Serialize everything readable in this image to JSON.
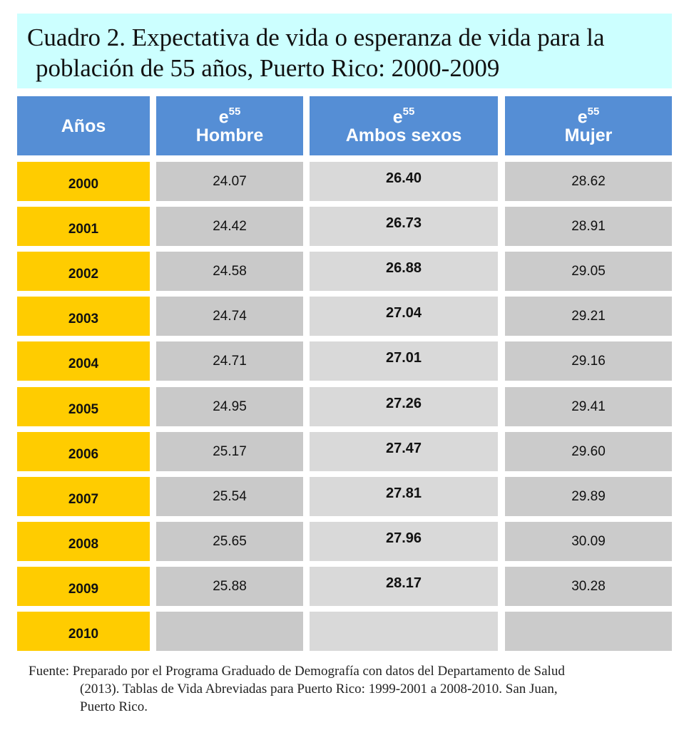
{
  "title": {
    "line1": "Cuadro 2. Expectativa de vida o esperanza de vida para la",
    "line2": "población de 55 años, Puerto Rico: 2000-2009"
  },
  "headers": {
    "years": "Años",
    "symbol": "e",
    "superscript": "55",
    "male": "Hombre",
    "both": "Ambos sexos",
    "female": "Mujer"
  },
  "chart_data": {
    "type": "table",
    "columns": [
      "Años",
      "e55 Hombre",
      "e55 Ambos sexos",
      "e55 Mujer"
    ],
    "rows": [
      {
        "year": "2000",
        "male": "24.07",
        "both": "26.40",
        "female": "28.62"
      },
      {
        "year": "2001",
        "male": "24.42",
        "both": "26.73",
        "female": "28.91"
      },
      {
        "year": "2002",
        "male": "24.58",
        "both": "26.88",
        "female": "29.05"
      },
      {
        "year": "2003",
        "male": "24.74",
        "both": "27.04",
        "female": "29.21"
      },
      {
        "year": "2004",
        "male": "24.71",
        "both": "27.01",
        "female": "29.16"
      },
      {
        "year": "2005",
        "male": "24.95",
        "both": "27.26",
        "female": "29.41"
      },
      {
        "year": "2006",
        "male": "25.17",
        "both": "27.47",
        "female": "29.60"
      },
      {
        "year": "2007",
        "male": "25.54",
        "both": "27.81",
        "female": "29.89"
      },
      {
        "year": "2008",
        "male": "25.65",
        "both": "27.96",
        "female": "30.09"
      },
      {
        "year": "2009",
        "male": "25.88",
        "both": "28.17",
        "female": "30.28"
      },
      {
        "year": "2010",
        "male": "",
        "both": "",
        "female": ""
      }
    ]
  },
  "source": {
    "line1": "Fuente: Preparado por el Programa Graduado de Demografía con datos del Departamento de Salud",
    "line2": "(2013). Tablas de Vida Abreviadas para Puerto Rico: 1999-2001 a  2008-2010. San Juan,",
    "line3": "Puerto Rico."
  },
  "colors": {
    "title_bg": "#ccffff",
    "header_bg": "#558ed5",
    "year_bg": "#ffcc00",
    "cell_gray": "#c9c9c9"
  }
}
